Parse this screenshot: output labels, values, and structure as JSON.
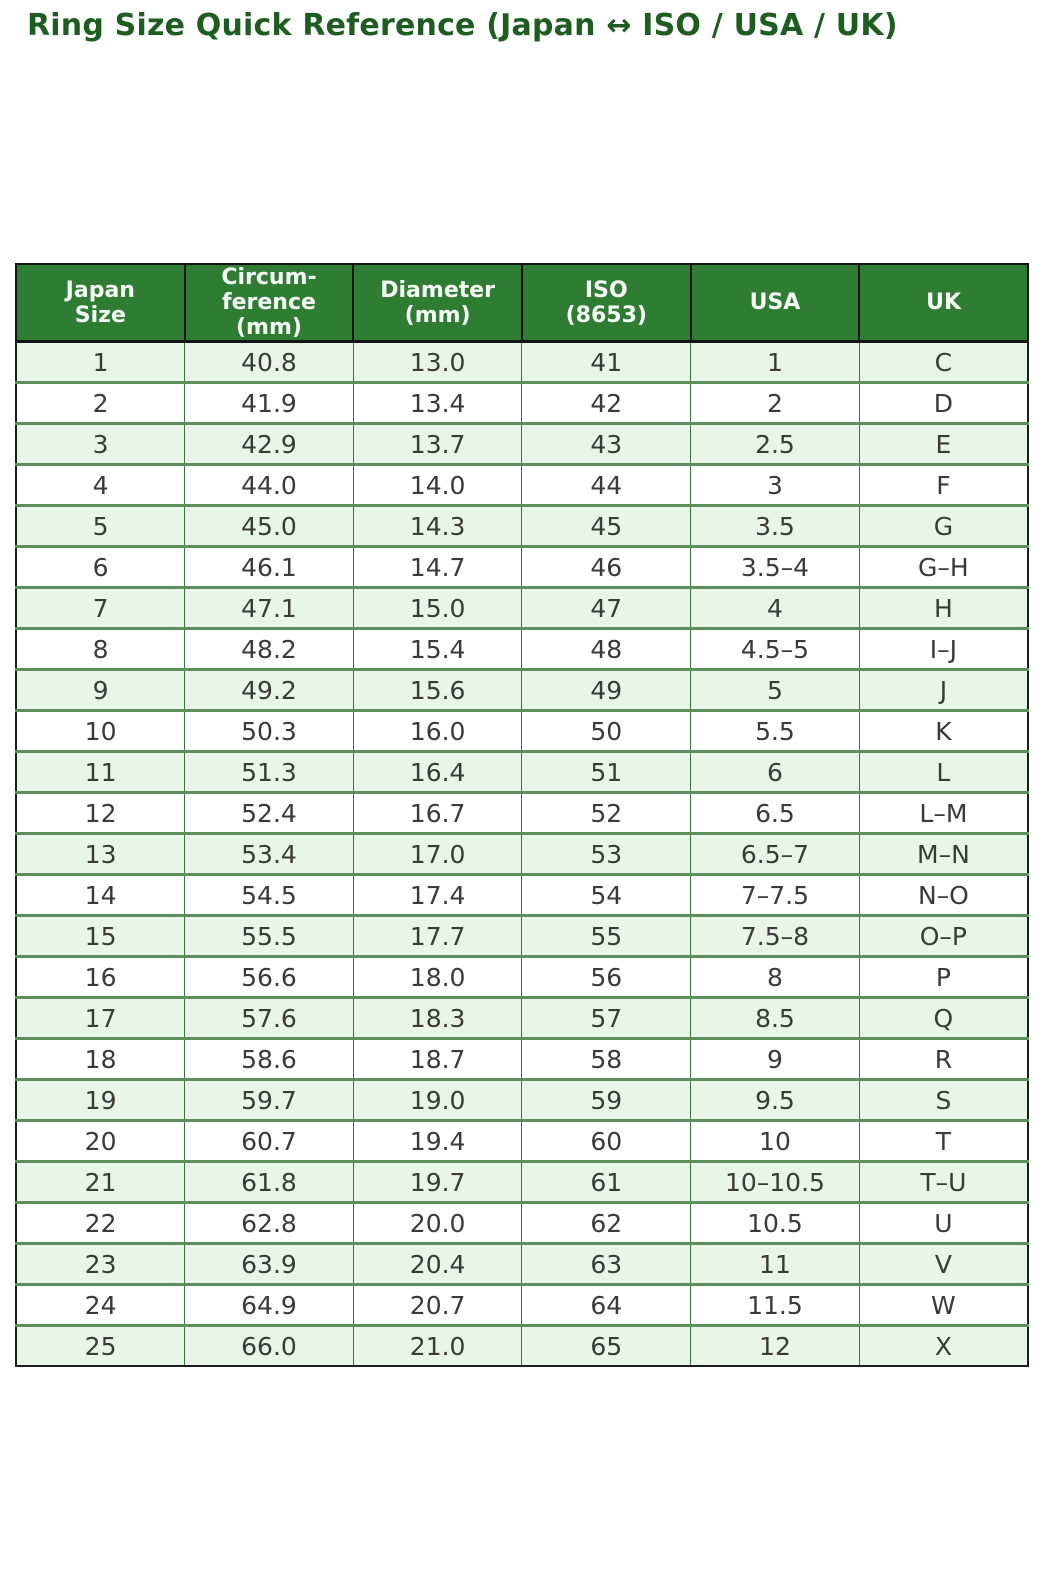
{
  "page": {
    "title": "Ring Size Quick Reference (Japan ↔ ISO / USA / UK)"
  },
  "colors": {
    "title_green": "#1d5e20",
    "header_bg": "#2e7d32",
    "header_text": "#f7fbf7",
    "row_bg": "#ffffff",
    "row_alt_bg": "#eaf5ea",
    "grid_vert": "#2e7d32",
    "grid_horiz": "#5c8f5c",
    "outer_border": "#1c1c1c",
    "body_text": "#3a3a3a"
  },
  "chart_data": {
    "type": "table",
    "title": "Ring Size Quick Reference (Japan ↔ ISO / USA / UK)",
    "columns": [
      "Japan\nSize",
      "Circum-\nference\n(mm)",
      "Diameter\n(mm)",
      "ISO\n(8653)",
      "USA",
      "UK"
    ],
    "rows": [
      [
        "1",
        "40.8",
        "13.0",
        "41",
        "1",
        "C"
      ],
      [
        "2",
        "41.9",
        "13.4",
        "42",
        "2",
        "D"
      ],
      [
        "3",
        "42.9",
        "13.7",
        "43",
        "2.5",
        "E"
      ],
      [
        "4",
        "44.0",
        "14.0",
        "44",
        "3",
        "F"
      ],
      [
        "5",
        "45.0",
        "14.3",
        "45",
        "3.5",
        "G"
      ],
      [
        "6",
        "46.1",
        "14.7",
        "46",
        "3.5–4",
        "G–H"
      ],
      [
        "7",
        "47.1",
        "15.0",
        "47",
        "4",
        "H"
      ],
      [
        "8",
        "48.2",
        "15.4",
        "48",
        "4.5–5",
        "I–J"
      ],
      [
        "9",
        "49.2",
        "15.6",
        "49",
        "5",
        "J"
      ],
      [
        "10",
        "50.3",
        "16.0",
        "50",
        "5.5",
        "K"
      ],
      [
        "11",
        "51.3",
        "16.4",
        "51",
        "6",
        "L"
      ],
      [
        "12",
        "52.4",
        "16.7",
        "52",
        "6.5",
        "L–M"
      ],
      [
        "13",
        "53.4",
        "17.0",
        "53",
        "6.5–7",
        "M–N"
      ],
      [
        "14",
        "54.5",
        "17.4",
        "54",
        "7–7.5",
        "N–O"
      ],
      [
        "15",
        "55.5",
        "17.7",
        "55",
        "7.5–8",
        "O–P"
      ],
      [
        "16",
        "56.6",
        "18.0",
        "56",
        "8",
        "P"
      ],
      [
        "17",
        "57.6",
        "18.3",
        "57",
        "8.5",
        "Q"
      ],
      [
        "18",
        "58.6",
        "18.7",
        "58",
        "9",
        "R"
      ],
      [
        "19",
        "59.7",
        "19.0",
        "59",
        "9.5",
        "S"
      ],
      [
        "20",
        "60.7",
        "19.4",
        "60",
        "10",
        "T"
      ],
      [
        "21",
        "61.8",
        "19.7",
        "61",
        "10–10.5",
        "T–U"
      ],
      [
        "22",
        "62.8",
        "20.0",
        "62",
        "10.5",
        "U"
      ],
      [
        "23",
        "63.9",
        "20.4",
        "63",
        "11",
        "V"
      ],
      [
        "24",
        "64.9",
        "20.7",
        "64",
        "11.5",
        "W"
      ],
      [
        "25",
        "66.0",
        "21.0",
        "65",
        "12",
        "X"
      ]
    ]
  }
}
